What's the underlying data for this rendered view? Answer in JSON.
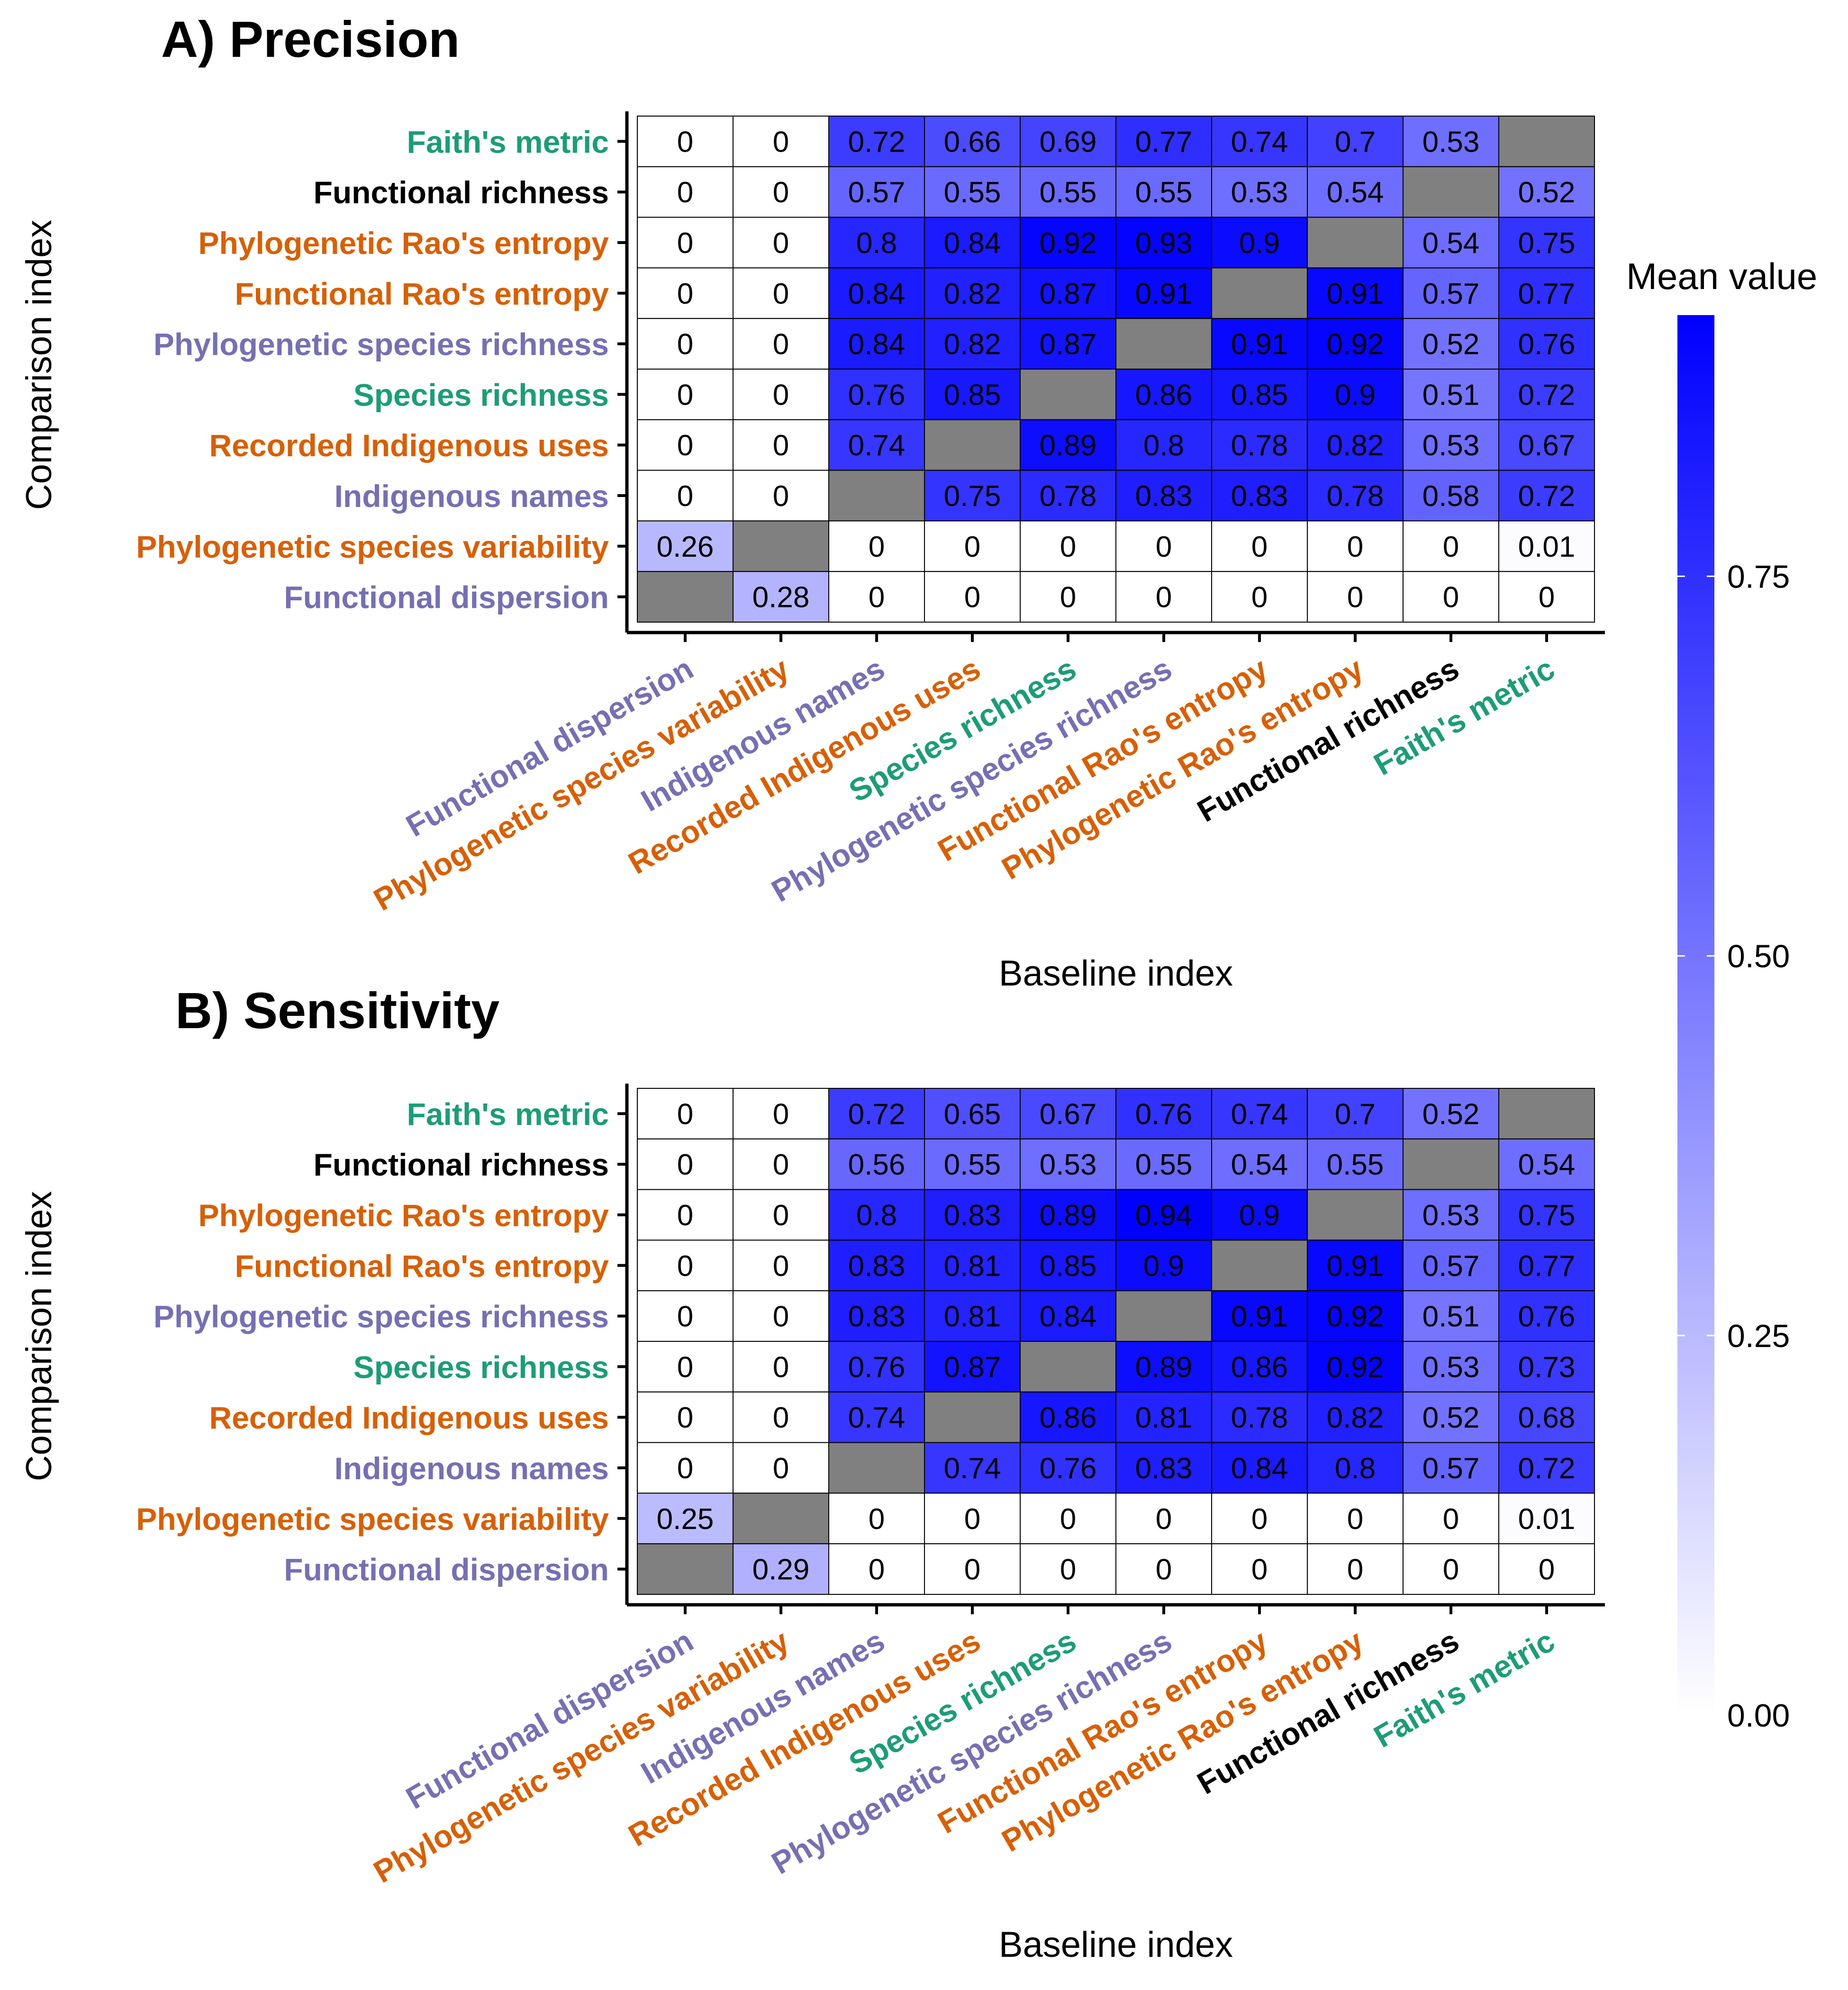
{
  "colors": {
    "group_green": "#1b9e77",
    "group_orange": "#d95f02",
    "group_purple": "#7570b3",
    "group_black": "#000000",
    "scale_low": "#ffffff",
    "scale_high": "#0000ff",
    "na_fill": "#808080"
  },
  "legend": {
    "title": "Mean value",
    "ticks": [
      "0.00",
      "0.25",
      "0.50",
      "0.75"
    ]
  },
  "chart_data": [
    {
      "type": "heatmap",
      "title": "A) Precision",
      "xlabel": "Baseline index",
      "ylabel": "Comparison index",
      "x_categories": [
        "Functional dispersion",
        "Phylogenetic species variability",
        "Indigenous names",
        "Recorded Indigenous uses",
        "Species richness",
        "Phylogenetic species richness",
        "Functional Rao's entropy",
        "Phylogenetic Rao's entropy",
        "Functional richness",
        "Faith's metric"
      ],
      "x_colors": [
        "group_purple",
        "group_orange",
        "group_purple",
        "group_orange",
        "group_green",
        "group_purple",
        "group_orange",
        "group_orange",
        "group_black",
        "group_green"
      ],
      "y_categories": [
        "Faith's metric",
        "Functional richness",
        "Phylogenetic Rao's entropy",
        "Functional Rao's entropy",
        "Phylogenetic species richness",
        "Species richness",
        "Recorded Indigenous uses",
        "Indigenous names",
        "Phylogenetic species variability",
        "Functional dispersion"
      ],
      "y_colors": [
        "group_green",
        "group_black",
        "group_orange",
        "group_orange",
        "group_purple",
        "group_green",
        "group_orange",
        "group_purple",
        "group_orange",
        "group_purple"
      ],
      "values": [
        [
          "0",
          "0",
          "0.72",
          "0.66",
          "0.69",
          "0.77",
          "0.74",
          "0.7",
          "0.53",
          null
        ],
        [
          "0",
          "0",
          "0.57",
          "0.55",
          "0.55",
          "0.55",
          "0.53",
          "0.54",
          null,
          "0.52"
        ],
        [
          "0",
          "0",
          "0.8",
          "0.84",
          "0.92",
          "0.93",
          "0.9",
          null,
          "0.54",
          "0.75"
        ],
        [
          "0",
          "0",
          "0.84",
          "0.82",
          "0.87",
          "0.91",
          null,
          "0.91",
          "0.57",
          "0.77"
        ],
        [
          "0",
          "0",
          "0.84",
          "0.82",
          "0.87",
          null,
          "0.91",
          "0.92",
          "0.52",
          "0.76"
        ],
        [
          "0",
          "0",
          "0.76",
          "0.85",
          null,
          "0.86",
          "0.85",
          "0.9",
          "0.51",
          "0.72"
        ],
        [
          "0",
          "0",
          "0.74",
          null,
          "0.89",
          "0.8",
          "0.78",
          "0.82",
          "0.53",
          "0.67"
        ],
        [
          "0",
          "0",
          null,
          "0.75",
          "0.78",
          "0.83",
          "0.83",
          "0.78",
          "0.58",
          "0.72"
        ],
        [
          "0.26",
          null,
          "0",
          "0",
          "0",
          "0",
          "0",
          "0",
          "0",
          "0.01"
        ],
        [
          null,
          "0.28",
          "0",
          "0",
          "0",
          "0",
          "0",
          "0",
          "0",
          "0"
        ]
      ]
    },
    {
      "type": "heatmap",
      "title": "B) Sensitivity",
      "xlabel": "Baseline index",
      "ylabel": "Comparison index",
      "x_categories": [
        "Functional dispersion",
        "Phylogenetic species variability",
        "Indigenous names",
        "Recorded Indigenous uses",
        "Species richness",
        "Phylogenetic species richness",
        "Functional Rao's entropy",
        "Phylogenetic Rao's entropy",
        "Functional richness",
        "Faith's metric"
      ],
      "x_colors": [
        "group_purple",
        "group_orange",
        "group_purple",
        "group_orange",
        "group_green",
        "group_purple",
        "group_orange",
        "group_orange",
        "group_black",
        "group_green"
      ],
      "y_categories": [
        "Faith's metric",
        "Functional richness",
        "Phylogenetic Rao's entropy",
        "Functional Rao's entropy",
        "Phylogenetic species richness",
        "Species richness",
        "Recorded Indigenous uses",
        "Indigenous names",
        "Phylogenetic species variability",
        "Functional dispersion"
      ],
      "y_colors": [
        "group_green",
        "group_black",
        "group_orange",
        "group_orange",
        "group_purple",
        "group_green",
        "group_orange",
        "group_purple",
        "group_orange",
        "group_purple"
      ],
      "values": [
        [
          "0",
          "0",
          "0.72",
          "0.65",
          "0.67",
          "0.76",
          "0.74",
          "0.7",
          "0.52",
          null
        ],
        [
          "0",
          "0",
          "0.56",
          "0.55",
          "0.53",
          "0.55",
          "0.54",
          "0.55",
          null,
          "0.54"
        ],
        [
          "0",
          "0",
          "0.8",
          "0.83",
          "0.89",
          "0.94",
          "0.9",
          null,
          "0.53",
          "0.75"
        ],
        [
          "0",
          "0",
          "0.83",
          "0.81",
          "0.85",
          "0.9",
          null,
          "0.91",
          "0.57",
          "0.77"
        ],
        [
          "0",
          "0",
          "0.83",
          "0.81",
          "0.84",
          null,
          "0.91",
          "0.92",
          "0.51",
          "0.76"
        ],
        [
          "0",
          "0",
          "0.76",
          "0.87",
          null,
          "0.89",
          "0.86",
          "0.92",
          "0.53",
          "0.73"
        ],
        [
          "0",
          "0",
          "0.74",
          null,
          "0.86",
          "0.81",
          "0.78",
          "0.82",
          "0.52",
          "0.68"
        ],
        [
          "0",
          "0",
          null,
          "0.74",
          "0.76",
          "0.83",
          "0.84",
          "0.8",
          "0.57",
          "0.72"
        ],
        [
          "0.25",
          null,
          "0",
          "0",
          "0",
          "0",
          "0",
          "0",
          "0",
          "0.01"
        ],
        [
          null,
          "0.29",
          "0",
          "0",
          "0",
          "0",
          "0",
          "0",
          "0",
          "0"
        ]
      ]
    }
  ]
}
